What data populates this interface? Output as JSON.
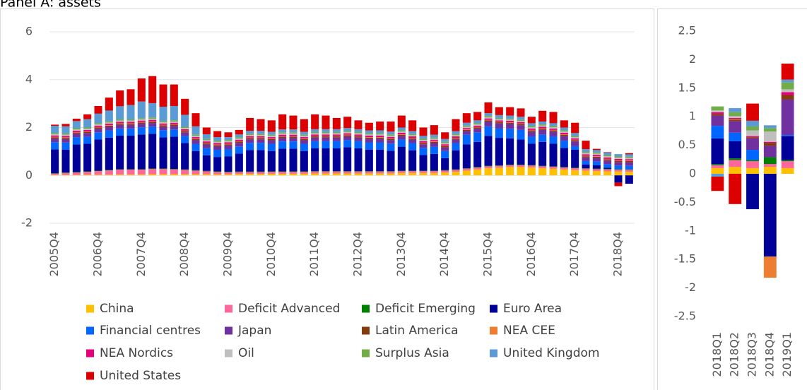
{
  "chart_data": [
    {
      "type": "stacked_bar",
      "title": "Panel A: assets",
      "grid": true,
      "legend": "bottom",
      "ylim": [
        -2,
        6
      ],
      "yticks": [
        -2,
        0,
        2,
        4,
        6
      ],
      "categories": [
        "2005Q4",
        null,
        null,
        null,
        "2006Q4",
        null,
        null,
        null,
        "2007Q4",
        null,
        null,
        null,
        "2008Q4",
        null,
        null,
        null,
        "2009Q4",
        null,
        null,
        null,
        "2010Q4",
        null,
        null,
        null,
        "2011Q4",
        null,
        null,
        null,
        "2012Q4",
        null,
        null,
        null,
        "2013Q4",
        null,
        null,
        null,
        "2014Q4",
        null,
        null,
        null,
        "2015Q4",
        null,
        null,
        null,
        "2016Q4",
        null,
        null,
        null,
        "2017Q4",
        null,
        null,
        null,
        "2018Q4",
        null
      ],
      "series": [
        {
          "name": "China",
          "color": "#FFC000",
          "values": [
            0.02,
            0.02,
            0.02,
            0.03,
            0.03,
            0.03,
            0.04,
            0.04,
            0.04,
            0.05,
            0.05,
            0.05,
            0.05,
            0.05,
            0.05,
            0.05,
            0.05,
            0.06,
            0.06,
            0.06,
            0.07,
            0.07,
            0.07,
            0.07,
            0.08,
            0.08,
            0.08,
            0.08,
            0.08,
            0.08,
            0.08,
            0.08,
            0.1,
            0.1,
            0.1,
            0.1,
            0.12,
            0.15,
            0.2,
            0.25,
            0.3,
            0.32,
            0.35,
            0.35,
            0.33,
            0.3,
            0.28,
            0.25,
            0.22,
            0.2,
            0.18,
            0.17,
            0.16,
            0.15
          ]
        },
        {
          "name": "Deficit Advanced",
          "color": "#FF6699",
          "values": [
            0.05,
            0.08,
            0.1,
            0.12,
            0.15,
            0.18,
            0.2,
            0.2,
            0.2,
            0.22,
            0.22,
            0.2,
            0.18,
            0.15,
            0.12,
            0.1,
            0.08,
            0.08,
            0.08,
            0.08,
            0.08,
            0.08,
            0.08,
            0.08,
            0.08,
            0.08,
            0.08,
            0.08,
            0.08,
            0.08,
            0.08,
            0.08,
            0.08,
            0.08,
            0.08,
            0.08,
            0.08,
            0.08,
            0.08,
            0.08,
            0.08,
            0.08,
            0.08,
            0.08,
            0.08,
            0.08,
            0.08,
            0.08,
            0.08,
            0.08,
            0.08,
            0.08,
            0.08,
            0.08
          ]
        },
        {
          "name": "Deficit Emerging",
          "color": "#008000",
          "values": [
            0.02,
            0.02,
            0.02,
            0.02,
            0.02,
            0.02,
            0.02,
            0.02,
            0.02,
            0.02,
            0.02,
            0.02,
            0.02,
            0.02,
            0.02,
            0.02,
            0.02,
            0.02,
            0.02,
            0.02,
            0.02,
            0.02,
            0.02,
            0.02,
            0.02,
            0.02,
            0.02,
            0.02,
            0.02,
            0.02,
            0.02,
            0.02,
            0.02,
            0.02,
            0.02,
            0.02,
            0.02,
            0.02,
            0.02,
            0.02,
            0.02,
            0.02,
            0.02,
            0.02,
            0.02,
            0.02,
            0.02,
            0.02,
            0.02,
            0.02,
            0.02,
            0.02,
            0.02,
            0.02
          ]
        },
        {
          "name": "Euro Area",
          "color": "#000099",
          "values": [
            1.0,
            0.95,
            1.15,
            1.15,
            1.3,
            1.35,
            1.4,
            1.4,
            1.45,
            1.45,
            1.3,
            1.35,
            1.1,
            0.8,
            0.65,
            0.6,
            0.65,
            0.75,
            0.9,
            0.9,
            0.85,
            0.95,
            0.95,
            0.85,
            0.95,
            0.95,
            0.95,
            1.0,
            0.95,
            0.9,
            0.9,
            0.85,
            1.0,
            0.85,
            0.65,
            0.7,
            0.5,
            0.8,
            1.0,
            1.05,
            1.25,
            1.15,
            1.1,
            1.05,
            0.9,
            1.0,
            0.95,
            0.8,
            0.75,
            0.15,
            0.15,
            0.05,
            -0.3,
            -0.35
          ]
        },
        {
          "name": "Financial centres",
          "color": "#0066FF",
          "values": [
            0.3,
            0.3,
            0.3,
            0.3,
            0.3,
            0.3,
            0.3,
            0.3,
            0.3,
            0.3,
            0.3,
            0.3,
            0.3,
            0.3,
            0.3,
            0.3,
            0.3,
            0.3,
            0.3,
            0.3,
            0.3,
            0.3,
            0.3,
            0.3,
            0.3,
            0.3,
            0.3,
            0.3,
            0.3,
            0.3,
            0.3,
            0.3,
            0.3,
            0.3,
            0.3,
            0.3,
            0.3,
            0.3,
            0.4,
            0.4,
            0.4,
            0.4,
            0.4,
            0.4,
            0.3,
            0.3,
            0.3,
            0.3,
            0.15,
            0.15,
            0.15,
            0.15,
            0.15,
            0.15
          ]
        },
        {
          "name": "Japan",
          "color": "#7030A0",
          "values": [
            0.15,
            0.15,
            0.15,
            0.15,
            0.15,
            0.15,
            0.15,
            0.15,
            0.15,
            0.15,
            0.15,
            0.15,
            0.15,
            0.15,
            0.15,
            0.15,
            0.15,
            0.15,
            0.15,
            0.15,
            0.15,
            0.15,
            0.15,
            0.15,
            0.15,
            0.15,
            0.15,
            0.15,
            0.15,
            0.15,
            0.15,
            0.15,
            0.15,
            0.15,
            0.15,
            0.15,
            0.15,
            0.15,
            0.15,
            0.15,
            0.2,
            0.2,
            0.2,
            0.2,
            0.2,
            0.2,
            0.2,
            0.2,
            0.2,
            0.15,
            0.15,
            0.15,
            0.15,
            0.15
          ]
        },
        {
          "name": "Latin America",
          "color": "#843C0C",
          "values": [
            0.05,
            0.05,
            0.05,
            0.05,
            0.05,
            0.05,
            0.05,
            0.05,
            0.05,
            0.05,
            0.05,
            0.05,
            0.05,
            0.05,
            0.05,
            0.05,
            0.05,
            0.05,
            0.05,
            0.05,
            0.05,
            0.05,
            0.05,
            0.05,
            0.05,
            0.05,
            0.05,
            0.05,
            0.05,
            0.05,
            0.05,
            0.05,
            0.05,
            0.05,
            0.05,
            0.05,
            0.05,
            0.05,
            0.05,
            0.05,
            0.05,
            0.05,
            0.05,
            0.05,
            0.05,
            0.05,
            0.05,
            0.05,
            0.05,
            0.05,
            0.05,
            0.05,
            0.05,
            0.05
          ]
        },
        {
          "name": "NEA CEE",
          "color": "#ED7D31",
          "values": [
            0.02,
            0.02,
            0.02,
            0.02,
            0.02,
            0.02,
            0.02,
            0.02,
            0.02,
            0.02,
            0.02,
            0.02,
            0.02,
            0.02,
            0.02,
            0.02,
            0.02,
            0.02,
            0.02,
            0.02,
            0.02,
            0.02,
            0.02,
            0.02,
            0.02,
            0.02,
            0.02,
            0.02,
            0.02,
            0.02,
            0.02,
            0.02,
            0.02,
            0.02,
            0.02,
            0.02,
            0.02,
            0.02,
            0.02,
            0.02,
            0.02,
            0.02,
            0.02,
            0.02,
            0.02,
            0.02,
            0.02,
            0.02,
            0.02,
            0.02,
            0.02,
            0.02,
            0.02,
            0.02
          ]
        },
        {
          "name": "NEA Nordics",
          "color": "#E6007E",
          "values": [
            0.06,
            0.06,
            0.06,
            0.06,
            0.06,
            0.06,
            0.06,
            0.06,
            0.06,
            0.06,
            0.06,
            0.06,
            0.06,
            0.06,
            0.06,
            0.06,
            0.06,
            0.06,
            0.06,
            0.06,
            0.06,
            0.06,
            0.06,
            0.06,
            0.06,
            0.06,
            0.06,
            0.06,
            0.06,
            0.06,
            0.06,
            0.06,
            0.06,
            0.06,
            0.06,
            0.06,
            0.06,
            0.06,
            0.06,
            0.06,
            0.06,
            0.06,
            0.06,
            0.06,
            0.06,
            0.06,
            0.06,
            0.06,
            0.06,
            0.06,
            0.06,
            0.06,
            0.06,
            0.06
          ]
        },
        {
          "name": "Oil",
          "color": "#BFBFBF",
          "values": [
            0.05,
            0.05,
            0.05,
            0.05,
            0.05,
            0.05,
            0.05,
            0.05,
            0.05,
            0.05,
            0.05,
            0.05,
            0.05,
            0.05,
            0.05,
            0.05,
            0.05,
            0.05,
            0.05,
            0.05,
            0.05,
            0.05,
            0.05,
            0.05,
            0.05,
            0.05,
            0.05,
            0.05,
            0.05,
            0.05,
            0.05,
            0.05,
            0.05,
            0.05,
            0.05,
            0.05,
            0.05,
            0.05,
            0.05,
            0.05,
            0.05,
            0.05,
            0.05,
            0.05,
            0.05,
            0.05,
            0.05,
            0.05,
            0.05,
            0.05,
            0.05,
            0.05,
            0.05,
            0.05
          ]
        },
        {
          "name": "Surplus Asia",
          "color": "#70AD47",
          "values": [
            0.05,
            0.05,
            0.05,
            0.05,
            0.05,
            0.05,
            0.05,
            0.05,
            0.05,
            0.05,
            0.05,
            0.05,
            0.05,
            0.05,
            0.05,
            0.05,
            0.05,
            0.05,
            0.05,
            0.05,
            0.05,
            0.05,
            0.05,
            0.05,
            0.05,
            0.05,
            0.05,
            0.05,
            0.05,
            0.05,
            0.05,
            0.05,
            0.05,
            0.05,
            0.05,
            0.05,
            0.05,
            0.05,
            0.05,
            0.05,
            0.05,
            0.05,
            0.05,
            0.05,
            0.05,
            0.05,
            0.05,
            0.05,
            0.05,
            0.05,
            0.05,
            0.05,
            0.05,
            0.05
          ]
        },
        {
          "name": "United Kingdom",
          "color": "#5B9BD5",
          "values": [
            0.3,
            0.3,
            0.3,
            0.35,
            0.4,
            0.45,
            0.55,
            0.6,
            0.7,
            0.6,
            0.6,
            0.6,
            0.5,
            0.35,
            0.2,
            0.15,
            0.12,
            0.12,
            0.12,
            0.12,
            0.12,
            0.12,
            0.12,
            0.12,
            0.12,
            0.12,
            0.12,
            0.12,
            0.12,
            0.12,
            0.12,
            0.12,
            0.12,
            0.12,
            0.12,
            0.12,
            0.12,
            0.12,
            0.12,
            0.12,
            0.12,
            0.12,
            0.12,
            0.12,
            0.12,
            0.12,
            0.12,
            0.12,
            0.12,
            0.12,
            0.1,
            0.1,
            0.1,
            0.1
          ]
        },
        {
          "name": "United States",
          "color": "#DD0000",
          "values": [
            0.05,
            0.1,
            0.1,
            0.2,
            0.32,
            0.54,
            0.66,
            0.66,
            0.96,
            1.13,
            0.93,
            0.9,
            0.67,
            0.55,
            0.28,
            0.25,
            0.2,
            0.19,
            0.54,
            0.49,
            0.48,
            0.63,
            0.58,
            0.53,
            0.62,
            0.57,
            0.47,
            0.47,
            0.37,
            0.32,
            0.37,
            0.42,
            0.5,
            0.45,
            0.35,
            0.4,
            0.28,
            0.5,
            0.4,
            0.35,
            0.45,
            0.33,
            0.35,
            0.35,
            0.27,
            0.45,
            0.47,
            0.3,
            0.43,
            0.35,
            0.05,
            0.02,
            -0.15,
            0.05
          ]
        }
      ]
    },
    {
      "type": "stacked_bar",
      "grid": false,
      "ylim": [
        -2.5,
        2.5
      ],
      "yticks": [
        -2.5,
        -2,
        -1.5,
        -1,
        -0.5,
        0,
        0.5,
        1,
        1.5,
        2,
        2.5
      ],
      "categories": [
        "2018Q1",
        "2018Q2",
        "2018Q3",
        "2018Q4",
        "2019Q1"
      ],
      "series": [
        {
          "color": "#FFC000",
          "values": [
            0.1,
            0.12,
            0.1,
            0.12,
            0.1
          ]
        },
        {
          "color": "#FF6699",
          "values": [
            0.05,
            0.12,
            0.12,
            0.05,
            0.12
          ]
        },
        {
          "color": "#008000",
          "values": [
            0.02,
            0.03,
            0.02,
            0.12,
            0.02
          ]
        },
        {
          "color": "#000099",
          "values": [
            0.45,
            0.3,
            -0.62,
            -1.45,
            0.42
          ]
        },
        {
          "color": "#0066FF",
          "values": [
            0.22,
            0.15,
            0.18,
            0,
            0.02
          ]
        },
        {
          "color": "#7030A0",
          "values": [
            0.18,
            0.2,
            0.2,
            0.2,
            0.62
          ]
        },
        {
          "color": "#843C0C",
          "values": [
            0.03,
            0.03,
            0.02,
            0.05,
            0.08
          ]
        },
        {
          "color": "#ED7D31",
          "values": [
            0,
            0.01,
            0,
            -0.37,
            0
          ]
        },
        {
          "color": "#E6007E",
          "values": [
            0.03,
            0.02,
            0.02,
            0.02,
            0.05
          ]
        },
        {
          "color": "#BFBFBF",
          "values": [
            0.03,
            0.03,
            0.1,
            0.18,
            0.05
          ]
        },
        {
          "color": "#70AD47",
          "values": [
            0.07,
            0.07,
            0.07,
            0.06,
            0.12
          ]
        },
        {
          "color": "#5B9BD5",
          "values": [
            -0.05,
            0.07,
            0.1,
            0.05,
            0.05
          ]
        },
        {
          "color": "#DD0000",
          "values": [
            -0.25,
            -0.53,
            0.3,
            0,
            0.28
          ]
        }
      ]
    }
  ]
}
